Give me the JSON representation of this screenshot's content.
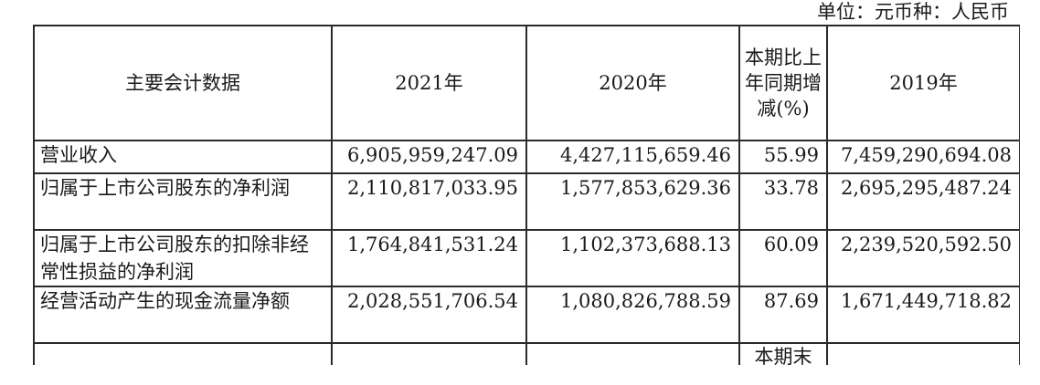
{
  "unit_note": "单位：元币种：人民币",
  "table": {
    "headers": {
      "item": "主要会计数据",
      "y2021": "2021年",
      "y2020": "2020年",
      "pct_change": "本期比上年同期增减(%)",
      "y2019": "2019年"
    },
    "rows": [
      {
        "label": "营业收入",
        "y2021": "6,905,959,247.09",
        "y2020": "4,427,115,659.46",
        "pct": "55.99",
        "y2019": "7,459,290,694.08"
      },
      {
        "label": "归属于上市公司股东的净利润",
        "y2021": "2,110,817,033.95",
        "y2020": "1,577,853,629.36",
        "pct": "33.78",
        "y2019": "2,695,295,487.24"
      },
      {
        "label": "归属于上市公司股东的扣除非经常性损益的净利润",
        "y2021": "1,764,841,531.24",
        "y2020": "1,102,373,688.13",
        "pct": "60.09",
        "y2019": "2,239,520,592.50"
      },
      {
        "label": "经营活动产生的现金流量净额",
        "y2021": "2,028,551,706.54",
        "y2020": "1,080,826,788.59",
        "pct": "87.69",
        "y2019": "1,671,449,718.82"
      }
    ],
    "partial_row_pct_text": "本期末"
  }
}
